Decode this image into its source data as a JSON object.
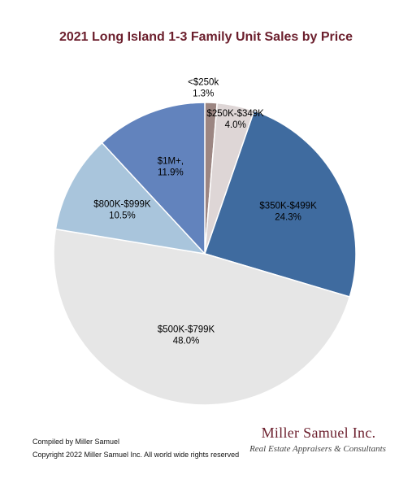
{
  "title": "2021 Long Island 1-3 Family Unit Sales by Price",
  "chart_data": {
    "type": "pie",
    "title": "2021 Long Island 1-3 Family Unit Sales by Price",
    "slices": [
      {
        "label": "<$250k",
        "percent_label": "1.3%",
        "value": 1.3,
        "color": "#9c8682"
      },
      {
        "label": "$250K-$349K",
        "percent_label": "4.0%",
        "value": 4.0,
        "color": "#ded6d6"
      },
      {
        "label": "$350K-$499K",
        "percent_label": "24.3%",
        "value": 24.3,
        "color": "#3f6b9f"
      },
      {
        "label": "$500K-$799K",
        "percent_label": "48.0%",
        "value": 48.0,
        "color": "#e6e6e6"
      },
      {
        "label": "$800K-$999K",
        "percent_label": "10.5%",
        "value": 10.5,
        "color": "#a9c5dc"
      },
      {
        "label": "$1M+,",
        "percent_label": "11.9%",
        "value": 11.9,
        "color": "#6283bd"
      }
    ]
  },
  "footer": {
    "compiled_by": "Compiled by Miller Samuel",
    "copyright": "Copyright 2022 Miller Samuel Inc. All world wide rights reserved"
  },
  "brand": {
    "name": "Miller Samuel Inc.",
    "tagline": "Real Estate Appraisers & Consultants"
  }
}
